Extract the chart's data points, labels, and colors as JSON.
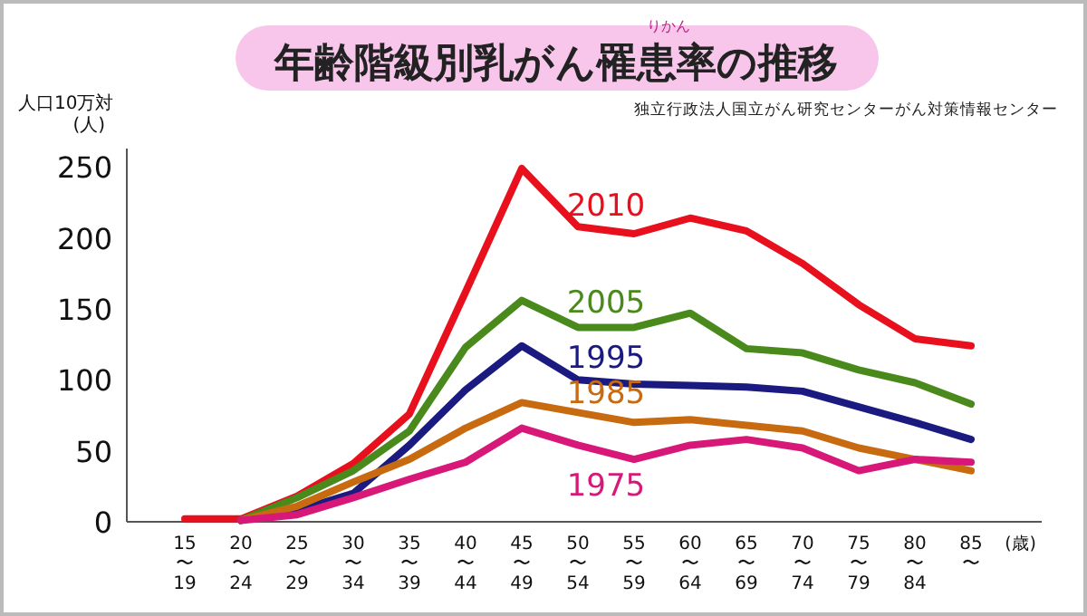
{
  "chart_data": {
    "type": "line",
    "title": "年齢階級別乳がん罹患率の推移",
    "annotations": [
      "りかん",
      "独立行政法人国立がん研究センターがん対策情報センター"
    ],
    "ylabel": "人口10万対\n(人)",
    "xlabel": "(歳)",
    "categories": [
      "15〜19",
      "20〜24",
      "25〜29",
      "30〜34",
      "35〜39",
      "40〜44",
      "45〜49",
      "50〜54",
      "55〜59",
      "60〜64",
      "65〜69",
      "70〜74",
      "75〜79",
      "80〜84",
      "85〜"
    ],
    "series": [
      {
        "name": "2010",
        "color": "#e8101c",
        "values": [
          2,
          2,
          18,
          41,
          76,
          162,
          249,
          208,
          203,
          214,
          205,
          182,
          153,
          129,
          124
        ]
      },
      {
        "name": "2005",
        "color": "#4a8a1c",
        "values": [
          null,
          1,
          17,
          36,
          64,
          123,
          156,
          137,
          137,
          147,
          122,
          119,
          107,
          98,
          83
        ]
      },
      {
        "name": "1995",
        "color": "#1a1a80",
        "values": [
          null,
          1,
          8,
          20,
          54,
          93,
          124,
          100,
          97,
          96,
          95,
          92,
          81,
          70,
          58
        ]
      },
      {
        "name": "1985",
        "color": "#c86a10",
        "values": [
          null,
          1,
          11,
          28,
          44,
          66,
          84,
          77,
          70,
          72,
          68,
          64,
          52,
          44,
          36
        ]
      },
      {
        "name": "1975",
        "color": "#d81878",
        "values": [
          null,
          1,
          5,
          17,
          30,
          42,
          66,
          54,
          44,
          54,
          58,
          52,
          36,
          44,
          42
        ]
      }
    ],
    "ylim": [
      0,
      263
    ],
    "yticks": [
      0,
      50,
      100,
      150,
      200,
      250
    ],
    "grid": false,
    "legend": false,
    "marker": "none",
    "line_style": "solid"
  }
}
